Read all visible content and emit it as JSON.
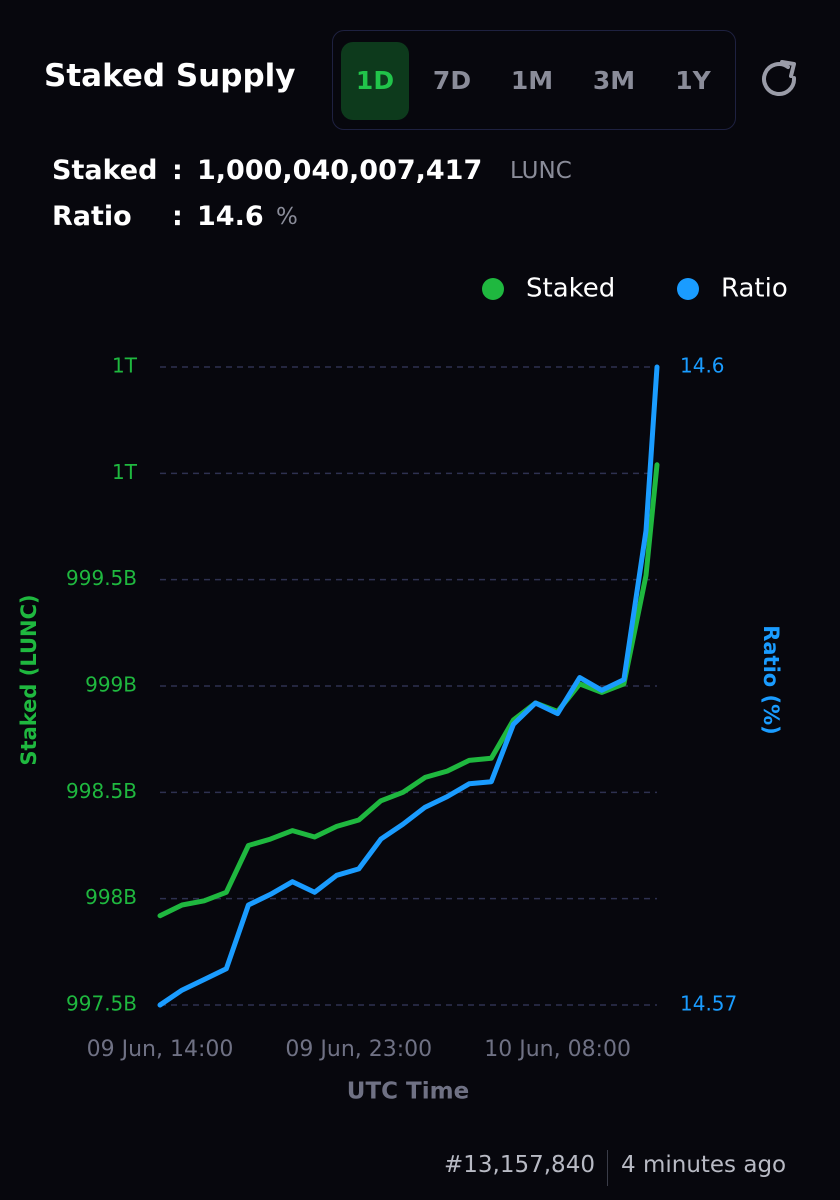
{
  "header": {
    "title": "Staked Supply",
    "ranges": [
      "1D",
      "7D",
      "1M",
      "3M",
      "1Y"
    ]
  },
  "stats": {
    "staked_label": "Staked",
    "staked_sep": ":",
    "staked_value": "1,000,040,007,417",
    "staked_unit": "LUNC",
    "ratio_label": "Ratio",
    "ratio_sep": ":",
    "ratio_value": "14.6",
    "ratio_unit": "%"
  },
  "chart_data": {
    "type": "line",
    "x": [
      "09 Jun, 14:00",
      "09 Jun, 15:00",
      "09 Jun, 16:00",
      "09 Jun, 17:00",
      "09 Jun, 18:00",
      "09 Jun, 19:00",
      "09 Jun, 20:00",
      "09 Jun, 21:00",
      "09 Jun, 22:00",
      "09 Jun, 23:00",
      "10 Jun, 00:00",
      "10 Jun, 01:00",
      "10 Jun, 02:00",
      "10 Jun, 03:00",
      "10 Jun, 04:00",
      "10 Jun, 05:00",
      "10 Jun, 06:00",
      "10 Jun, 07:00",
      "10 Jun, 08:00",
      "10 Jun, 09:00",
      "10 Jun, 10:00",
      "10 Jun, 11:00",
      "10 Jun, 12:00",
      "10 Jun, 12:30"
    ],
    "xticks": [
      "09 Jun, 14:00",
      "09 Jun, 23:00",
      "10 Jun, 08:00"
    ],
    "xlabel": "UTC Time",
    "ylabel": "Staked (LUNC)",
    "y2label": "Ratio (%)",
    "series": [
      {
        "name": "Staked",
        "color": "#1fb83f",
        "values": [
          997920000000,
          997970000000,
          997990000000,
          998030000000,
          998250000000,
          998280000000,
          998320000000,
          998290000000,
          998340000000,
          998370000000,
          998460000000,
          998500000000,
          998570000000,
          998600000000,
          998650000000,
          998660000000,
          998840000000,
          998920000000,
          998880000000,
          999010000000,
          998970000000,
          999010000000,
          999520000000,
          1000040007417
        ]
      },
      {
        "name": "Ratio",
        "color": "#1a9cff",
        "axis": "y2",
        "values": [
          14.57,
          14.5707,
          14.5712,
          14.5717,
          14.5747,
          14.5752,
          14.5758,
          14.5753,
          14.5761,
          14.5764,
          14.5778,
          14.5785,
          14.5793,
          14.5798,
          14.5804,
          14.5805,
          14.5832,
          14.5842,
          14.5837,
          14.5854,
          14.5848,
          14.5853,
          14.5923,
          14.6
        ]
      }
    ],
    "ylim": [
      997500000000,
      1000500000000
    ],
    "yticks": [
      {
        "value": 997500000000,
        "label": "997.5B"
      },
      {
        "value": 998000000000,
        "label": "998B"
      },
      {
        "value": 998500000000,
        "label": "998.5B"
      },
      {
        "value": 999000000000,
        "label": "999B"
      },
      {
        "value": 999500000000,
        "label": "999.5B"
      },
      {
        "value": 1000000000000,
        "label": "1T"
      },
      {
        "value": 1000500000000,
        "label": "1T"
      }
    ],
    "y2lim": [
      14.57,
      14.6
    ],
    "y2ticks": [
      14.57,
      14.6
    ],
    "grid": true,
    "legend": "top-right"
  },
  "footer": {
    "block": "#13,157,840",
    "time": "4 minutes ago"
  }
}
